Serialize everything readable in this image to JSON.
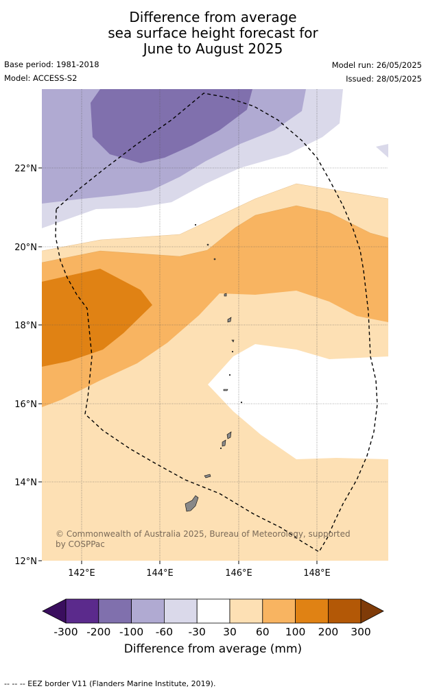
{
  "title_lines": [
    "Difference from average",
    "sea surface height forecast for",
    "June to August 2025"
  ],
  "base_period": "Base period: 1981-2018",
  "model": "Model: ACCESS-S2",
  "model_run": "Model run: 26/05/2025",
  "issued": "Issued: 28/05/2025",
  "map": {
    "lon_range": [
      141.0,
      149.8
    ],
    "lat_range": [
      12.0,
      24.0
    ],
    "lon_ticks": [
      "142°E",
      "144°E",
      "146°E",
      "148°E"
    ],
    "lat_ticks": [
      "22°N",
      "20°N",
      "18°N",
      "16°N",
      "14°N",
      "12°N"
    ],
    "copyright": "© Commonwealth of Australia 2025, Bureau of Meteorology, supported by COSPPac"
  },
  "colorbar": {
    "title": "Difference from average (mm)",
    "tick_labels": [
      "-300",
      "-200",
      "-100",
      "-60",
      "-30",
      "30",
      "60",
      "100",
      "200",
      "300"
    ],
    "colors": [
      "#3a0e5e",
      "#5b2a8c",
      "#8070ad",
      "#b0aad2",
      "#dad9ea",
      "#ffffff",
      "#fde0b4",
      "#f8b461",
      "#e08214",
      "#b35806",
      "#7f3b08"
    ]
  },
  "footnote": "--  --  -- EEZ border V11 (Flanders Marine Institute, 2019)."
}
